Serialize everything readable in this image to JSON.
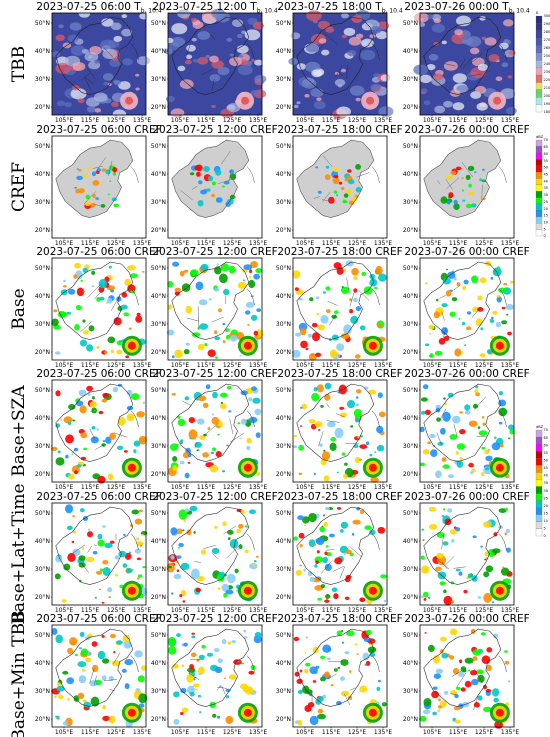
{
  "rows": [
    {
      "label": "TBB",
      "kind": "tbb"
    },
    {
      "label": "CREF",
      "kind": "cref"
    },
    {
      "label": "Base",
      "kind": "pred"
    },
    {
      "label": "Base+SZA",
      "kind": "pred"
    },
    {
      "label": "Base+Lat+Time",
      "kind": "pred"
    },
    {
      "label": "Base+Min TBB",
      "kind": "pred"
    }
  ],
  "titles": {
    "tbb": [
      "2023-07-25 06:00 T",
      "2023-07-25 12:00 T",
      "2023-07-25 18:00 T",
      "2023-07-26 00:00 T"
    ],
    "tbb_sub": "b, 10.4",
    "cref_row": [
      "2023-07-25 06:00 CREF",
      "2023-07-25 12:00 CREF",
      "2023-07-25 18:00 CREF",
      "2023-07-26 00:00 CREF"
    ],
    "pred": [
      "2023-07-25 06:00 CREF",
      "2023-07-25 12:00 CREF",
      "2023-07-25 18:00 CREF",
      "2023-07-26 00:00 CREF"
    ]
  },
  "axes": {
    "x_ticks": [
      "105°E",
      "115°E",
      "125°E",
      "135°E"
    ],
    "y_ticks": [
      "50°N",
      "40°N",
      "30°N",
      "20°N"
    ]
  },
  "colorbars": {
    "tbb": {
      "unit": "K",
      "labels": [
        "300",
        "290",
        "280",
        "270",
        "260",
        "250",
        "240",
        "230",
        "220",
        "210",
        "200",
        "190",
        "180"
      ],
      "colors": [
        "#2a2f7a",
        "#31378c",
        "#3b47a2",
        "#4659b3",
        "#5a70c2",
        "#7f93cf",
        "#a7b6dd",
        "#e9a6b2",
        "#f06a6a",
        "#e8e05a",
        "#6bd06b",
        "#a7e7ef",
        "#ffffff"
      ]
    },
    "cref": {
      "unit": "dBZ",
      "labels": [
        "70",
        "65",
        "60",
        "55",
        "50",
        "45",
        "40",
        "35",
        "30",
        "25",
        "20",
        "15",
        "10",
        "5",
        "0"
      ],
      "colors": [
        "#cfa0e6",
        "#9b51c7",
        "#ff00ff",
        "#c00000",
        "#ff0000",
        "#ff8c00",
        "#ffd700",
        "#ffff00",
        "#00a000",
        "#00ff00",
        "#00c8c8",
        "#1e90ff",
        "#87cefa",
        "#dcdcdc",
        "#ffffff"
      ]
    }
  },
  "chart_data": {
    "type": "heatmap",
    "layout": "6 rows x 4 columns of map panels",
    "times": [
      "2023-07-25 06:00",
      "2023-07-25 12:00",
      "2023-07-25 18:00",
      "2023-07-26 00:00"
    ],
    "rows": [
      "TBB",
      "CREF",
      "Base",
      "Base+SZA",
      "Base+Lat+Time",
      "Base+Min TBB"
    ],
    "x_range": [
      100,
      135
    ],
    "y_range": [
      15,
      55
    ],
    "x_ticks": [
      105,
      115,
      125,
      135
    ],
    "y_ticks": [
      20,
      30,
      40,
      50
    ]
  }
}
